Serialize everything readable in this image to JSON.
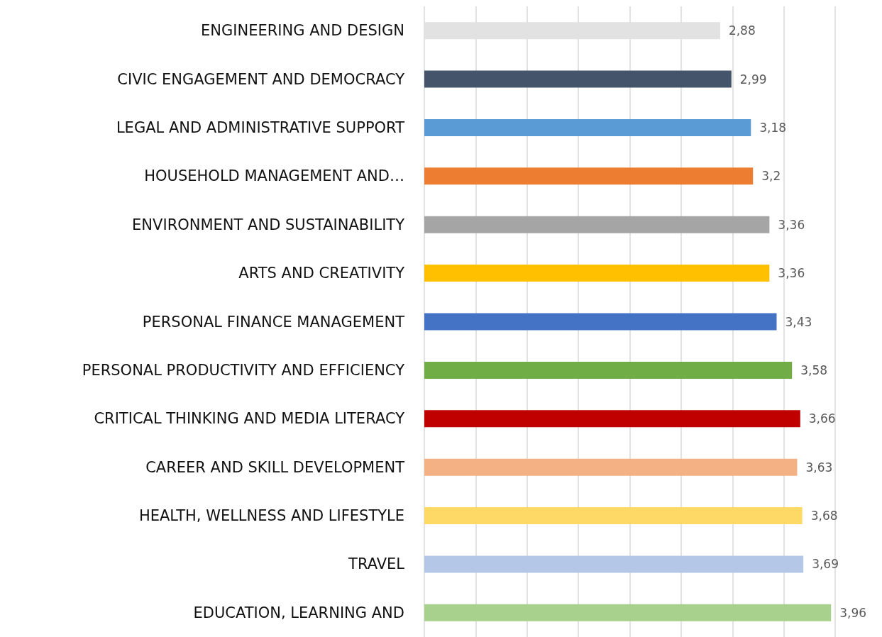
{
  "chart_data": {
    "type": "bar",
    "orientation": "horizontal",
    "categories": [
      "ENGINEERING AND DESIGN",
      "CIVIC ENGAGEMENT AND DEMOCRACY",
      "LEGAL AND ADMINISTRATIVE SUPPORT",
      "HOUSEHOLD MANAGEMENT AND…",
      "ENVIRONMENT AND SUSTAINABILITY",
      "ARTS AND CREATIVITY",
      "PERSONAL FINANCE MANAGEMENT",
      "PERSONAL PRODUCTIVITY AND EFFICIENCY",
      "CRITICAL THINKING AND MEDIA LITERACY",
      "CAREER AND SKILL DEVELOPMENT",
      "HEALTH, WELLNESS AND LIFESTYLE",
      "TRAVEL",
      "EDUCATION, LEARNING AND"
    ],
    "values": [
      2.88,
      2.99,
      3.18,
      3.2,
      3.36,
      3.36,
      3.43,
      3.58,
      3.66,
      3.63,
      3.68,
      3.69,
      3.96
    ],
    "value_labels": [
      "2,88",
      "2,99",
      "3,18",
      "3,2",
      "3,36",
      "3,36",
      "3,43",
      "3,58",
      "3,66",
      "3,63",
      "3,68",
      "3,69",
      "3,96"
    ],
    "colors": [
      "#e2e2e2",
      "#44546a",
      "#5b9bd5",
      "#ed7d31",
      "#a5a5a5",
      "#ffc000",
      "#4472c4",
      "#70ad47",
      "#c00000",
      "#f4b183",
      "#ffd966",
      "#b4c7e7",
      "#a9d18e"
    ],
    "xlim": [
      0,
      4
    ],
    "tick_labels": "y",
    "grid": "x"
  }
}
